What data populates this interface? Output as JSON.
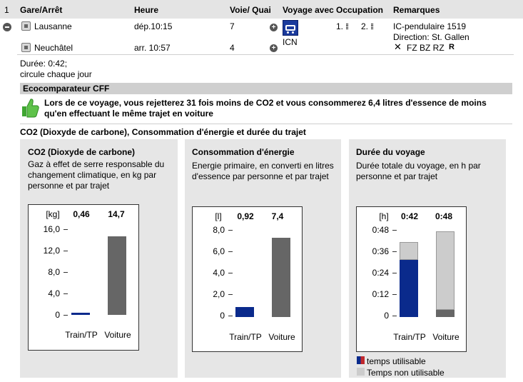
{
  "header": {
    "index": "1",
    "station": "Gare/Arrêt",
    "time": "Heure",
    "platform": "Voie/ Quai",
    "travel_with": "Voyage avec",
    "occupancy": "Occupation",
    "remarks": "Remarques"
  },
  "connection": {
    "departure": {
      "station": "Lausanne",
      "time": "dép.10:15",
      "platform": "7"
    },
    "arrival": {
      "station": "Neuchâtel",
      "time": "arr.  10:57",
      "platform": "4"
    },
    "train_type": "ICN",
    "occupancy_first": "1.",
    "occupancy_second": "2.",
    "remark_line1": "IC-pendulaire 1519",
    "remark_line2": "Direction: St. Gallen",
    "remark_codes": "FZ BZ RZ",
    "remark_extra": "R",
    "duration": "Durée: 0:42;",
    "frequency": "circule chaque jour"
  },
  "eco": {
    "section_title": "Ecocomparateur CFF",
    "message_line1": "Lors de ce voyage, vous rejetterez 31 fois moins de CO2 et vous consommerez 6,4 litres d'essence de moins",
    "message_line2": "qu'en effectuant le même trajet en voiture",
    "subtitle": "CO2 (Dioxyde de carbone), Consommation d'énergie et durée du trajet"
  },
  "colors": {
    "train": "#0a2a8c",
    "car": "#666666",
    "unusable": "#cccccc",
    "accent": "#3fa632"
  },
  "panels": {
    "co2": {
      "title": "CO2 (Dioxyde de carbone)",
      "desc_line1": "Gaz à effet de serre responsable du",
      "desc_line2": "changement climatique, en kg par",
      "desc_line3": "personne et par trajet",
      "unit": "[kg]",
      "train_value_label": "0,46",
      "car_value_label": "14,7",
      "ticks": [
        "16,0",
        "12,0",
        "8,0",
        "4,0",
        "0"
      ],
      "train_label": "Train/TP",
      "car_label": "Voiture"
    },
    "energy": {
      "title": "Consommation d'énergie",
      "desc_line1": "Energie primaire, en converti en litres",
      "desc_line2": "d'essence par personne et par trajet",
      "unit": "[l]",
      "train_value_label": "0,92",
      "car_value_label": "7,4",
      "ticks": [
        "8,0",
        "6,0",
        "4,0",
        "2,0",
        "0"
      ],
      "train_label": "Train/TP",
      "car_label": "Voiture"
    },
    "duration": {
      "title": "Durée du voyage",
      "desc_line1": "Durée totale du voyage, en h par",
      "desc_line2": "personne et par trajet",
      "unit": "[h]",
      "train_value_label": "0:42",
      "car_value_label": "0:48",
      "ticks": [
        "0:48",
        "0:36",
        "0:24",
        "0:12",
        "0"
      ],
      "train_label": "Train/TP",
      "car_label": "Voiture",
      "legend_usable": "temps utilisable",
      "legend_unusable": "Temps non utilisable"
    }
  },
  "chart_data": [
    {
      "type": "bar",
      "title": "CO2 (Dioxyde de carbone)",
      "ylabel": "[kg]",
      "categories": [
        "Train/TP",
        "Voiture"
      ],
      "values": [
        0.46,
        14.7
      ],
      "ylim": [
        0,
        16
      ]
    },
    {
      "type": "bar",
      "title": "Consommation d'énergie",
      "ylabel": "[l]",
      "categories": [
        "Train/TP",
        "Voiture"
      ],
      "values": [
        0.92,
        7.4
      ],
      "ylim": [
        0,
        8
      ]
    },
    {
      "type": "bar",
      "title": "Durée du voyage",
      "ylabel": "[h]",
      "categories": [
        "Train/TP",
        "Voiture"
      ],
      "series": [
        {
          "name": "temps utilisable",
          "values": [
            32,
            0
          ]
        },
        {
          "name": "Temps non utilisable",
          "values": [
            10,
            48
          ]
        }
      ],
      "totals": [
        42,
        48
      ],
      "ylim": [
        0,
        48
      ],
      "units": "minutes"
    }
  ]
}
